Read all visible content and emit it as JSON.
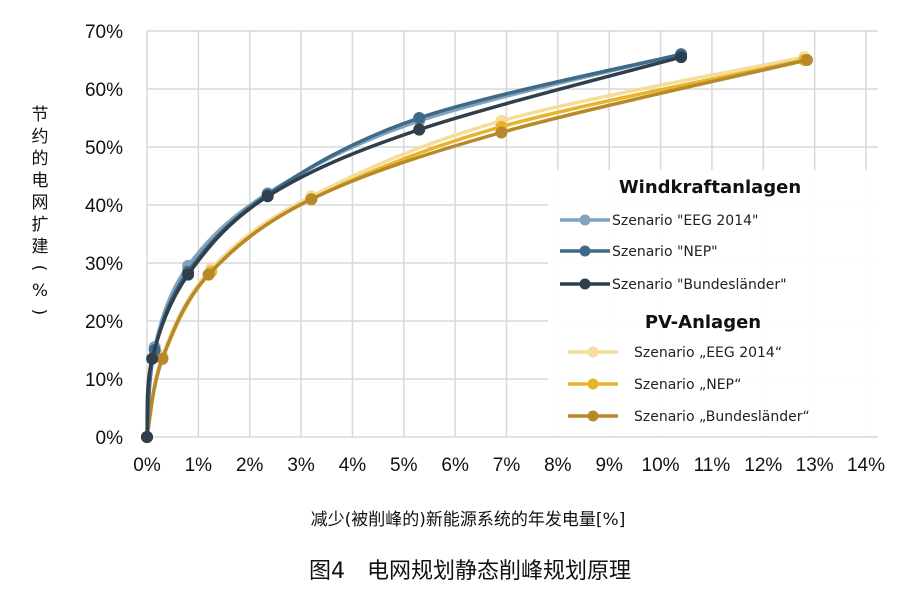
{
  "chart_data": {
    "type": "line",
    "title": "",
    "caption": "图4　电网规划静态削峰规划原理",
    "xlabel": "减少(被削峰的)新能源系统的年发电量[%]",
    "ylabel": "节约的电网扩建(%)",
    "xlim": [
      0,
      14
    ],
    "ylim": [
      0,
      70
    ],
    "xticks": [
      "0%",
      "1%",
      "2%",
      "3%",
      "4%",
      "5%",
      "6%",
      "7%",
      "8%",
      "9%",
      "10%",
      "11%",
      "12%",
      "13%",
      "14%"
    ],
    "yticks": [
      "0%",
      "10%",
      "20%",
      "30%",
      "40%",
      "50%",
      "60%",
      "70%"
    ],
    "grid": true,
    "legend_placement": "right",
    "legend_groups": [
      {
        "title": "Windkraftanlagen",
        "series_index": [
          0,
          1,
          2
        ]
      },
      {
        "title": "PV-Anlagen",
        "series_index": [
          3,
          4,
          5
        ]
      }
    ],
    "series": [
      {
        "name": "Szenario \"EEG 2014\"",
        "color": "#7fa3bd",
        "x": [
          0,
          0.15,
          0.8,
          2.35,
          5.3,
          10.4
        ],
        "y": [
          0,
          15.5,
          29.5,
          42,
          54.5,
          66
        ]
      },
      {
        "name": "Szenario \"NEP\"",
        "color": "#3f6a88",
        "x": [
          0,
          0.15,
          0.8,
          2.35,
          5.3,
          10.4
        ],
        "y": [
          0,
          15,
          28.5,
          41.8,
          55,
          66
        ]
      },
      {
        "name": "Szenario \"Bundesländer\"",
        "color": "#2f3f4c",
        "x": [
          0,
          0.1,
          0.8,
          2.35,
          5.3,
          10.4
        ],
        "y": [
          0,
          13.5,
          28,
          41.5,
          53,
          65.5
        ]
      },
      {
        "name": "Szenario „EEG 2014“",
        "color": "#f5dc98",
        "x": [
          0,
          0.3,
          1.25,
          3.2,
          6.9,
          12.8
        ],
        "y": [
          0,
          14,
          29,
          41.5,
          54.5,
          65.5
        ]
      },
      {
        "name": "Szenario „NEP“",
        "color": "#e8b52a",
        "x": [
          0,
          0.3,
          1.25,
          3.2,
          6.9,
          12.8
        ],
        "y": [
          0,
          13.5,
          28.5,
          41,
          53.5,
          65
        ]
      },
      {
        "name": "Szenario „Bundesländer“",
        "color": "#b8892a",
        "x": [
          0,
          0.3,
          1.2,
          3.2,
          6.9,
          12.85
        ],
        "y": [
          0,
          13.5,
          28,
          41,
          52.5,
          65
        ]
      }
    ]
  }
}
